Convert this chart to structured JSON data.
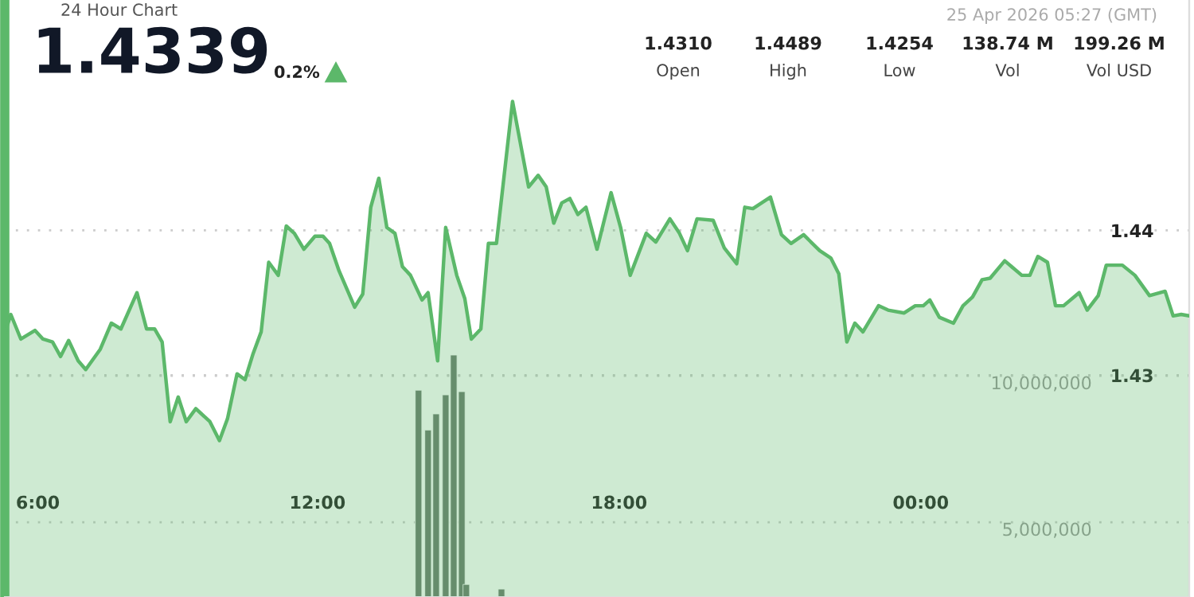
{
  "chart_data": {
    "type": "area",
    "title": "1.4339",
    "subtitle": "24 Hour Chart",
    "annotations": [
      "0.2%",
      "25 Apr 2026 05:27 (GMT)",
      "1.4310",
      "Open",
      "1.4489",
      "High",
      "1.4254",
      "Low",
      "138.74 M",
      "Vol",
      "199.26 M",
      "Vol USD"
    ],
    "series": [
      {
        "color": "#5cb86a",
        "x": [
          5.78,
          5.9,
          6.1,
          6.38,
          6.54,
          6.73,
          6.89,
          7.05,
          7.24,
          7.39,
          7.68,
          7.9,
          8.09,
          8.41,
          8.6,
          8.76,
          8.91,
          9.07,
          9.23,
          9.39,
          9.58,
          9.86,
          10.05,
          10.21,
          10.4,
          10.56,
          10.72,
          10.88,
          11.03,
          11.22,
          11.38,
          11.54,
          11.73,
          11.95,
          12.11,
          12.24,
          12.43,
          12.74,
          12.9,
          13.06,
          13.22,
          13.38,
          13.54,
          13.69,
          13.85,
          14.08,
          14.2,
          14.39,
          14.55,
          14.77,
          14.93,
          15.06,
          15.25,
          15.4,
          15.56,
          15.88,
          16.2,
          16.39,
          16.55,
          16.7,
          16.86,
          17.02,
          17.18,
          17.34,
          17.56,
          17.84,
          18.03,
          18.22,
          18.54,
          18.73,
          19.01,
          19.2,
          19.36,
          19.55,
          19.87,
          20.09,
          20.34,
          20.5,
          20.66,
          21.01,
          21.23,
          21.42,
          21.67,
          21.99,
          22.21,
          22.37,
          22.53,
          22.69,
          22.85,
          23.16,
          23.35,
          23.67,
          23.89,
          24.05,
          24.18,
          24.37,
          24.65,
          24.84,
          25.03,
          25.22,
          25.38,
          25.67,
          26.01,
          26.17,
          26.33,
          26.52,
          26.68,
          26.84,
          27.15,
          27.31,
          27.53,
          27.69,
          28.01,
          28.26,
          28.55,
          28.86,
          29.02,
          29.18,
          29.34
        ],
        "values": [
          1.4329,
          1.4342,
          1.4325,
          1.4331,
          1.4325,
          1.4323,
          1.4313,
          1.4324,
          1.431,
          1.4304,
          1.4318,
          1.4336,
          1.4332,
          1.4357,
          1.4332,
          1.4332,
          1.4323,
          1.4268,
          1.4285,
          1.4268,
          1.4277,
          1.4268,
          1.4255,
          1.427,
          1.4301,
          1.4297,
          1.4315,
          1.433,
          1.4378,
          1.4369,
          1.4403,
          1.4398,
          1.4387,
          1.4396,
          1.4396,
          1.4391,
          1.4372,
          1.4347,
          1.4356,
          1.4416,
          1.4436,
          1.4402,
          1.4398,
          1.4375,
          1.4369,
          1.4352,
          1.4357,
          1.431,
          1.4402,
          1.4369,
          1.4353,
          1.4325,
          1.4332,
          1.4391,
          1.4391,
          1.4489,
          1.443,
          1.4438,
          1.443,
          1.4405,
          1.4419,
          1.4422,
          1.4411,
          1.4416,
          1.4387,
          1.4426,
          1.4402,
          1.4369,
          1.4398,
          1.4392,
          1.4408,
          1.4398,
          1.4386,
          1.4408,
          1.4407,
          1.4388,
          1.4377,
          1.4416,
          1.4415,
          1.4423,
          1.4397,
          1.4391,
          1.4397,
          1.4386,
          1.4381,
          1.437,
          1.4323,
          1.4336,
          1.433,
          1.4348,
          1.4345,
          1.4343,
          1.4348,
          1.4348,
          1.4352,
          1.434,
          1.4336,
          1.4348,
          1.4354,
          1.4366,
          1.4367,
          1.4379,
          1.4369,
          1.4369,
          1.4382,
          1.4378,
          1.4348,
          1.4348,
          1.4357,
          1.4345,
          1.4355,
          1.4376,
          1.4376,
          1.4369,
          1.4355,
          1.4358,
          1.4341,
          1.4342,
          1.4341
        ]
      },
      {
        "type": "bar",
        "axis": "y2",
        "color": "#6b7a6e",
        "x": [
          14.01,
          14.2,
          14.36,
          14.55,
          14.71,
          14.87,
          14.96,
          15.66
        ],
        "values": [
          9510000,
          8150000,
          8700000,
          9350000,
          10710000,
          9460000,
          2880000,
          2720000
        ]
      }
    ],
    "xlim": [
      5.78,
      29.34
    ],
    "xticks": [
      {
        "value": 6,
        "label": "6:00"
      },
      {
        "value": 12,
        "label": "12:00"
      },
      {
        "value": 18,
        "label": "18:00"
      },
      {
        "value": 24,
        "label": "00:00"
      }
    ],
    "ylim": [
      1.4147,
      1.4559
    ],
    "yticks": [
      1.43,
      1.44
    ],
    "y2lim": [
      2450000,
      22830000
    ],
    "y2ticks": [
      {
        "value": 5000000,
        "label": "5,000,000"
      },
      {
        "value": 10000000,
        "label": "10,000,000"
      }
    ],
    "grid": "y",
    "legend": false
  }
}
